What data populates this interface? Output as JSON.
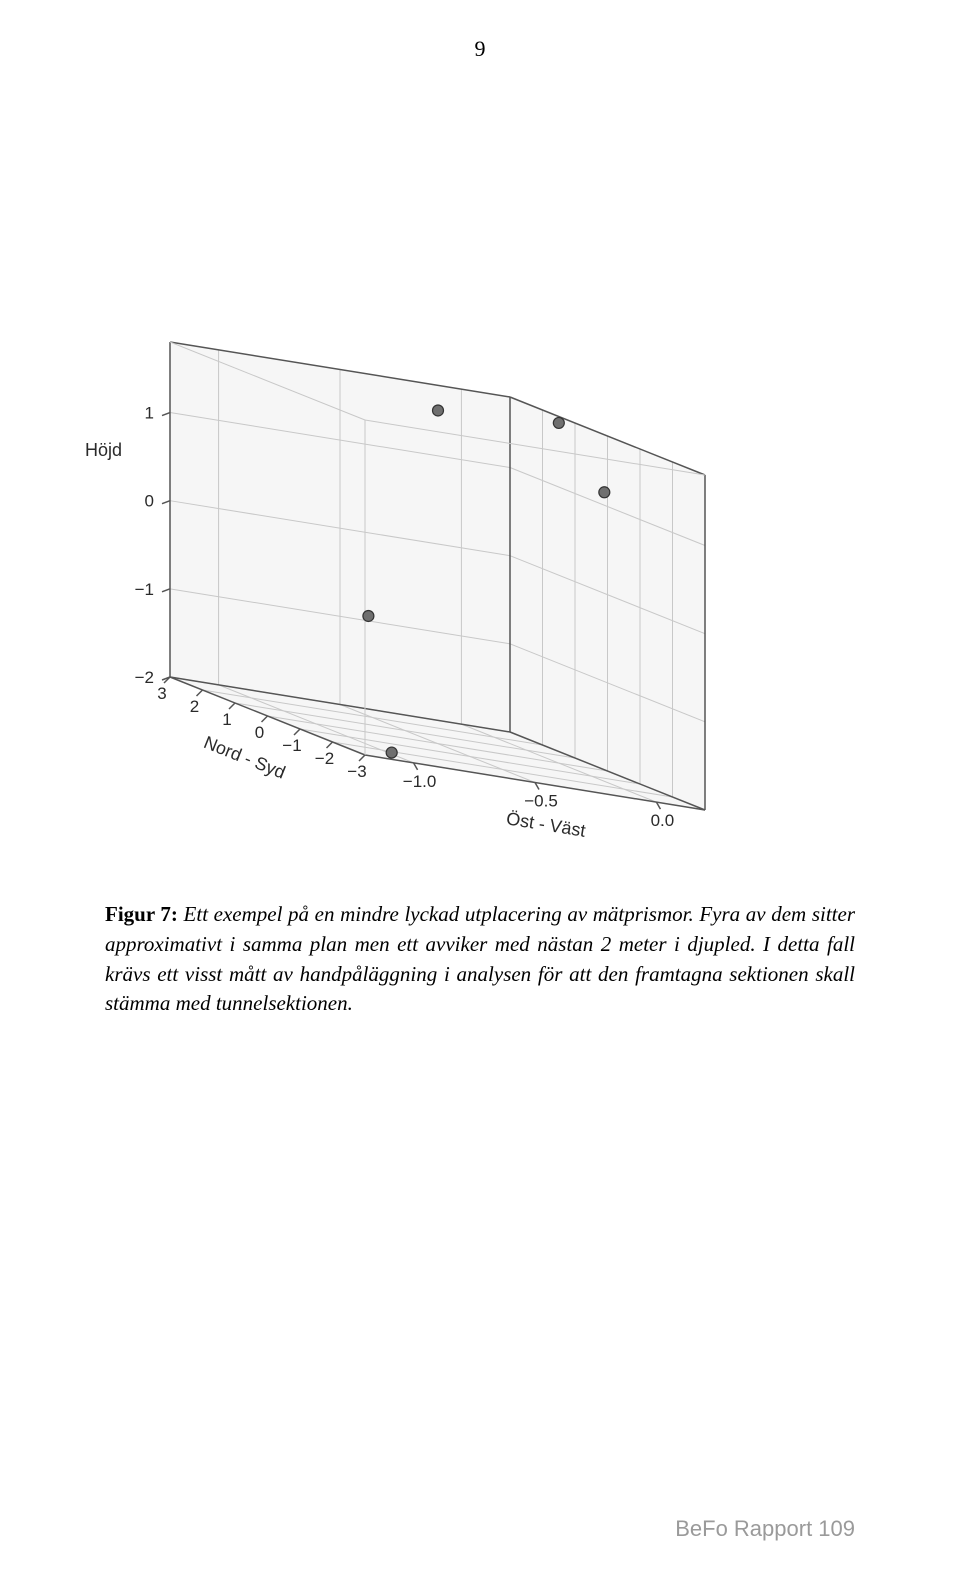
{
  "page_number": "9",
  "footer_text": "BeFo Rapport 109",
  "caption": {
    "label": "Figur 7:",
    "text": "Ett exempel på en mindre lyckad utplacering av mätprismor. Fyra av dem sitter approximativt i samma plan men ett avviker med nästan 2 meter i djupled. I detta fall krävs ett visst mått av handpåläggning i analysen för att den framtagna sektionen skall stämma med tunnelsektionen."
  },
  "chart": {
    "type": "3d-scatter",
    "background_color": "#ffffff",
    "pane_color": "#f6f6f6",
    "grid_color": "#c8c8c8",
    "edge_color": "#555555",
    "marker_fill": "#6f6f6f",
    "marker_stroke": "#333333",
    "marker_radius": 5.5,
    "axes": {
      "x": {
        "label": "Öst - Väst",
        "ticks": [
          -1.0,
          -0.5,
          0.0
        ],
        "min": -1.2,
        "max": 0.2
      },
      "y": {
        "label": "Nord - Syd",
        "ticks": [
          3,
          2,
          1,
          0,
          -1,
          -2,
          -3
        ],
        "min": -3,
        "max": 3
      },
      "z": {
        "label": "Höjd",
        "ticks": [
          1,
          0,
          -1,
          -2
        ],
        "min": -2,
        "max": 1.8
      }
    },
    "label_fontsize": 18,
    "tick_fontsize": 17,
    "points": [
      {
        "x": -0.15,
        "y": 2.6,
        "z": 1.55,
        "comment": "top-left"
      },
      {
        "x": 0.12,
        "y": 0.9,
        "z": 1.78,
        "comment": "top-right-upper"
      },
      {
        "x": 0.12,
        "y": -0.5,
        "z": 1.2,
        "comment": "top-right-lower"
      },
      {
        "x": -0.45,
        "y": 2.5,
        "z": -0.9,
        "comment": "mid-low (outlier in depth)"
      },
      {
        "x": -1.05,
        "y": -2.7,
        "z": -1.95,
        "comment": "bottom-front"
      }
    ]
  }
}
